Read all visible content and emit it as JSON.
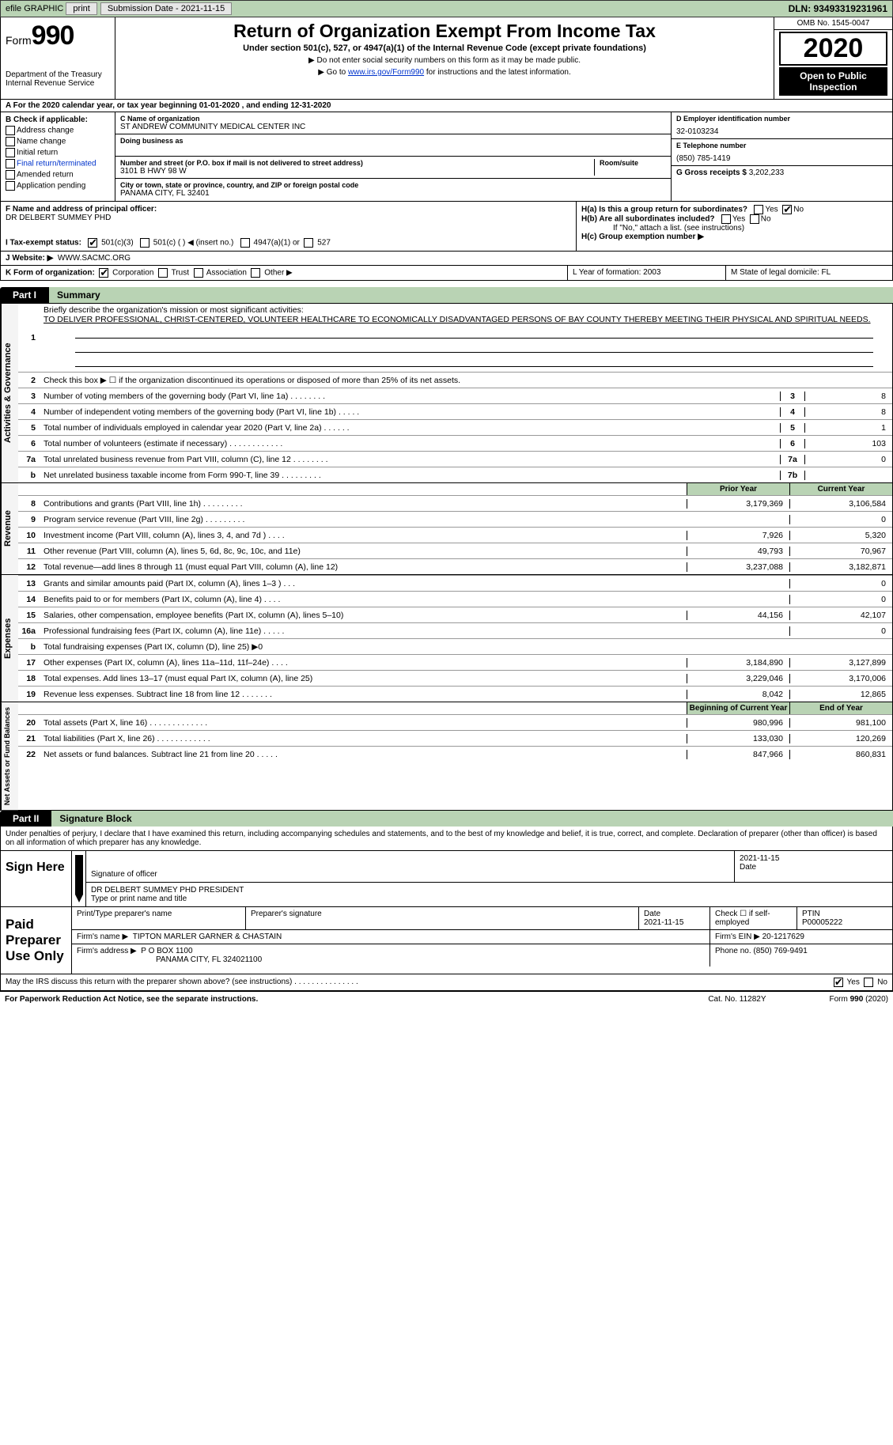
{
  "topbar": {
    "efile": "efile GRAPHIC",
    "print": "print",
    "sub_label": "Submission Date - 2021-11-15",
    "dln": "DLN: 93493319231961"
  },
  "header": {
    "form_word": "Form",
    "form_no": "990",
    "dept": "Department of the Treasury\nInternal Revenue Service",
    "title": "Return of Organization Exempt From Income Tax",
    "subtitle": "Under section 501(c), 527, or 4947(a)(1) of the Internal Revenue Code (except private foundations)",
    "note1": "▶ Do not enter social security numbers on this form as it may be made public.",
    "note2_pre": "▶ Go to ",
    "note2_link": "www.irs.gov/Form990",
    "note2_post": " for instructions and the latest information.",
    "omb": "OMB No. 1545-0047",
    "year": "2020",
    "open": "Open to Public Inspection"
  },
  "row_a": "A For the 2020 calendar year, or tax year beginning 01-01-2020  , and ending 12-31-2020",
  "sec_b": {
    "label": "B Check if applicable:",
    "items": [
      "Address change",
      "Name change",
      "Initial return",
      "Final return/terminated",
      "Amended return",
      "Application pending"
    ]
  },
  "sec_c": {
    "name_lbl": "C Name of organization",
    "name": "ST ANDREW COMMUNITY MEDICAL CENTER INC",
    "dba_lbl": "Doing business as",
    "addr_lbl": "Number and street (or P.O. box if mail is not delivered to street address)",
    "room_lbl": "Room/suite",
    "addr": "3101 B HWY 98 W",
    "city_lbl": "City or town, state or province, country, and ZIP or foreign postal code",
    "city": "PANAMA CITY, FL  32401"
  },
  "sec_d": {
    "ein_lbl": "D Employer identification number",
    "ein": "32-0103234",
    "tel_lbl": "E Telephone number",
    "tel": "(850) 785-1419",
    "gross_lbl": "G Gross receipts $",
    "gross": "3,202,233"
  },
  "sec_f": {
    "label": "F Name and address of principal officer:",
    "name": "DR DELBERT SUMMEY PHD"
  },
  "sec_h": {
    "ha": "H(a)  Is this a group return for subordinates?",
    "hb": "H(b)  Are all subordinates included?",
    "hb_note": "If \"No,\" attach a list. (see instructions)",
    "hc": "H(c)  Group exemption number ▶",
    "yes": "Yes",
    "no": "No"
  },
  "sec_i": {
    "label": "I   Tax-exempt status:",
    "opt1": "501(c)(3)",
    "opt2": "501(c) (  ) ◀ (insert no.)",
    "opt3": "4947(a)(1) or",
    "opt4": "527"
  },
  "sec_j": {
    "label": "J   Website: ▶",
    "val": "WWW.SACMC.ORG"
  },
  "sec_k": {
    "label": "K Form of organization:",
    "corp": "Corporation",
    "trust": "Trust",
    "assoc": "Association",
    "other": "Other ▶"
  },
  "sec_lm": {
    "l": "L Year of formation: 2003",
    "m": "M State of legal domicile: FL"
  },
  "part1": {
    "tag": "Part I",
    "title": "Summary"
  },
  "governance": {
    "q1_lbl": "1",
    "q1": "Briefly describe the organization's mission or most significant activities:",
    "q1_val": "TO DELIVER PROFESSIONAL, CHRIST-CENTERED, VOLUNTEER HEALTHCARE TO ECONOMICALLY DISADVANTAGED PERSONS OF BAY COUNTY THEREBY MEETING THEIR PHYSICAL AND SPIRITUAL NEEDS.",
    "q2": "Check this box ▶ ☐  if the organization discontinued its operations or disposed of more than 25% of its net assets.",
    "lines": [
      {
        "n": "3",
        "d": "Number of voting members of the governing body (Part VI, line 1a)  .   .   .   .   .   .   .   .",
        "box": "3",
        "v": "8"
      },
      {
        "n": "4",
        "d": "Number of independent voting members of the governing body (Part VI, line 1b)  .   .   .   .   .",
        "box": "4",
        "v": "8"
      },
      {
        "n": "5",
        "d": "Total number of individuals employed in calendar year 2020 (Part V, line 2a)  .   .   .   .   .   .",
        "box": "5",
        "v": "1"
      },
      {
        "n": "6",
        "d": "Total number of volunteers (estimate if necessary)  .   .   .   .   .   .   .   .   .   .   .   .",
        "box": "6",
        "v": "103"
      },
      {
        "n": "7a",
        "d": "Total unrelated business revenue from Part VIII, column (C), line 12  .   .   .   .   .   .   .   .",
        "box": "7a",
        "v": "0"
      },
      {
        "n": "b",
        "d": "Net unrelated business taxable income from Form 990-T, line 39  .   .   .   .   .   .   .   .   .",
        "box": "7b",
        "v": ""
      }
    ]
  },
  "revenue": {
    "label": "Revenue",
    "hdr_prior": "Prior Year",
    "hdr_current": "Current Year",
    "lines": [
      {
        "n": "8",
        "d": "Contributions and grants (Part VIII, line 1h)  .   .   .   .   .   .   .   .   .",
        "p": "3,179,369",
        "c": "3,106,584"
      },
      {
        "n": "9",
        "d": "Program service revenue (Part VIII, line 2g)  .   .   .   .   .   .   .   .   .",
        "p": "",
        "c": "0"
      },
      {
        "n": "10",
        "d": "Investment income (Part VIII, column (A), lines 3, 4, and 7d )  .   .   .   .",
        "p": "7,926",
        "c": "5,320"
      },
      {
        "n": "11",
        "d": "Other revenue (Part VIII, column (A), lines 5, 6d, 8c, 9c, 10c, and 11e)",
        "p": "49,793",
        "c": "70,967"
      },
      {
        "n": "12",
        "d": "Total revenue—add lines 8 through 11 (must equal Part VIII, column (A), line 12)",
        "p": "3,237,088",
        "c": "3,182,871"
      }
    ]
  },
  "expenses": {
    "label": "Expenses",
    "lines": [
      {
        "n": "13",
        "d": "Grants and similar amounts paid (Part IX, column (A), lines 1–3 )  .   .   .",
        "p": "",
        "c": "0"
      },
      {
        "n": "14",
        "d": "Benefits paid to or for members (Part IX, column (A), line 4)  .   .   .   .",
        "p": "",
        "c": "0"
      },
      {
        "n": "15",
        "d": "Salaries, other compensation, employee benefits (Part IX, column (A), lines 5–10)",
        "p": "44,156",
        "c": "42,107"
      },
      {
        "n": "16a",
        "d": "Professional fundraising fees (Part IX, column (A), line 11e)  .   .   .   .   .",
        "p": "",
        "c": "0"
      },
      {
        "n": "b",
        "d": "Total fundraising expenses (Part IX, column (D), line 25) ▶0",
        "p": "SHADED",
        "c": "SHADED"
      },
      {
        "n": "17",
        "d": "Other expenses (Part IX, column (A), lines 11a–11d, 11f–24e)  .   .   .   .",
        "p": "3,184,890",
        "c": "3,127,899"
      },
      {
        "n": "18",
        "d": "Total expenses. Add lines 13–17 (must equal Part IX, column (A), line 25)",
        "p": "3,229,046",
        "c": "3,170,006"
      },
      {
        "n": "19",
        "d": "Revenue less expenses. Subtract line 18 from line 12  .   .   .   .   .   .   .",
        "p": "8,042",
        "c": "12,865"
      }
    ]
  },
  "netassets": {
    "label": "Net Assets or Fund Balances",
    "hdr_begin": "Beginning of Current Year",
    "hdr_end": "End of Year",
    "lines": [
      {
        "n": "20",
        "d": "Total assets (Part X, line 16)  .   .   .   .   .   .   .   .   .   .   .   .   .",
        "p": "980,996",
        "c": "981,100"
      },
      {
        "n": "21",
        "d": "Total liabilities (Part X, line 26)  .   .   .   .   .   .   .   .   .   .   .   .",
        "p": "133,030",
        "c": "120,269"
      },
      {
        "n": "22",
        "d": "Net assets or fund balances. Subtract line 21 from line 20  .   .   .   .   .",
        "p": "847,966",
        "c": "860,831"
      }
    ]
  },
  "part2": {
    "tag": "Part II",
    "title": "Signature Block"
  },
  "penalty": "Under penalties of perjury, I declare that I have examined this return, including accompanying schedules and statements, and to the best of my knowledge and belief, it is true, correct, and complete. Declaration of preparer (other than officer) is based on all information of which preparer has any knowledge.",
  "sign": {
    "label": "Sign Here",
    "sig_lbl": "Signature of officer",
    "date_lbl": "Date",
    "date": "2021-11-15",
    "name": "DR DELBERT SUMMEY PHD  PRESIDENT",
    "name_lbl": "Type or print name and title"
  },
  "paid": {
    "label": "Paid Preparer Use Only",
    "r1": {
      "c1_lbl": "Print/Type preparer's name",
      "c2_lbl": "Preparer's signature",
      "c3_lbl": "Date",
      "c3_val": "2021-11-15",
      "c4_lbl": "Check ☐ if self-employed",
      "c5_lbl": "PTIN",
      "c5_val": "P00005222"
    },
    "r2": {
      "lbl": "Firm's name    ▶",
      "val": "TIPTON MARLER GARNER & CHASTAIN",
      "ein_lbl": "Firm's EIN ▶",
      "ein": "20-1217629"
    },
    "r3": {
      "lbl": "Firm's address ▶",
      "val": "P O BOX 1100",
      "city": "PANAMA CITY, FL  324021100",
      "ph_lbl": "Phone no.",
      "ph": "(850) 769-9491"
    }
  },
  "discuss": {
    "q": "May the IRS discuss this return with the preparer shown above? (see instructions)   .   .   .   .   .   .   .   .   .   .   .   .   .   .   .",
    "yes": "Yes",
    "no": "No"
  },
  "footer": {
    "left": "For Paperwork Reduction Act Notice, see the separate instructions.",
    "mid": "Cat. No. 11282Y",
    "right": "Form 990 (2020)"
  },
  "colors": {
    "bg_green": "#b9d3b4",
    "link": "#0033cc"
  }
}
